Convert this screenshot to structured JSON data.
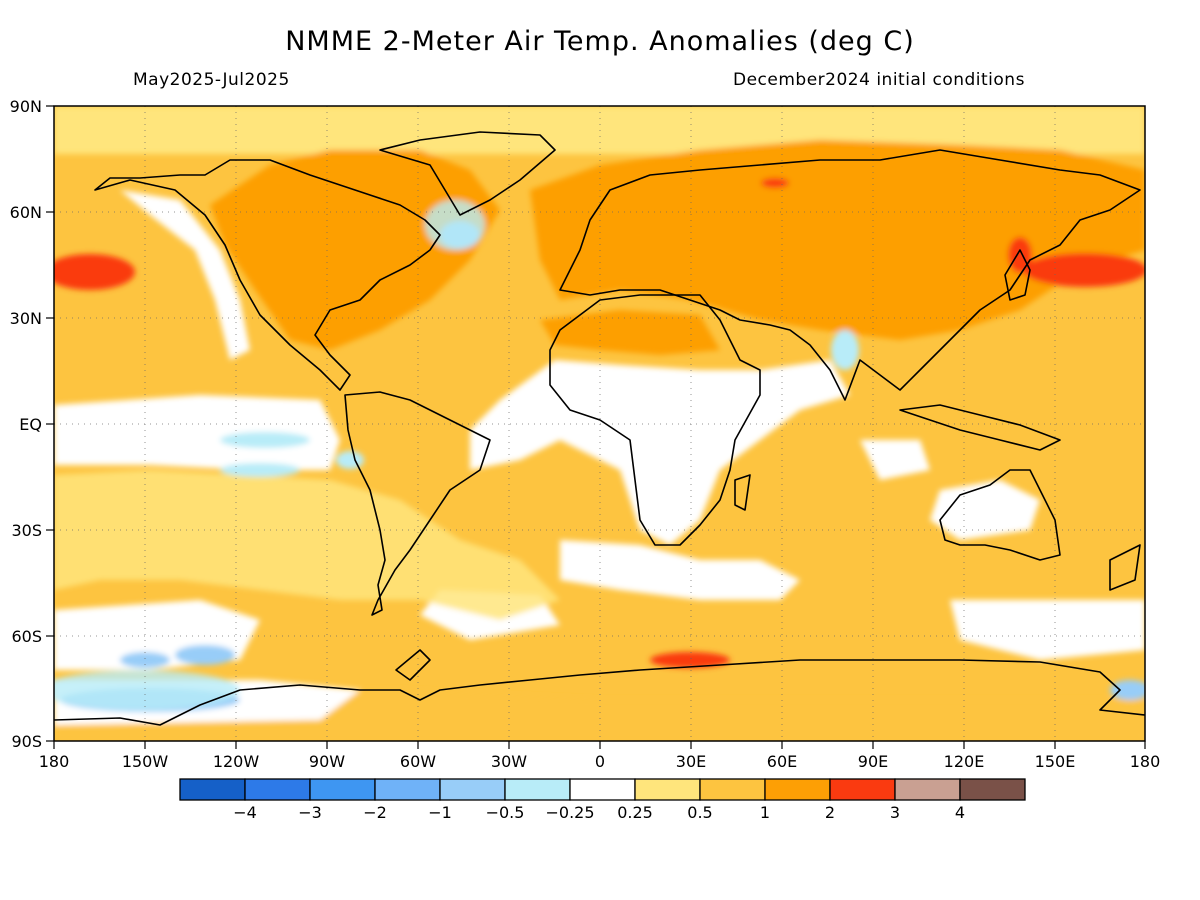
{
  "title": "NMME 2-Meter Air Temp. Anomalies (deg C)",
  "season": "May2025-Jul2025",
  "init": "December2024 initial conditions",
  "lat_ticks": [
    "90N",
    "60N",
    "30N",
    "EQ",
    "30S",
    "60S",
    "90S"
  ],
  "lon_ticks": [
    "180",
    "150W",
    "120W",
    "90W",
    "60W",
    "30W",
    "0",
    "30E",
    "60E",
    "90E",
    "120E",
    "150E",
    "180"
  ],
  "colorbar": {
    "colors": [
      "#1560c8",
      "#2d7ae8",
      "#3e96f2",
      "#6fb2f8",
      "#98cdf8",
      "#b8ecf8",
      "#ffffff",
      "#ffe57c",
      "#fdc440",
      "#fd9f05",
      "#fa3a10",
      "#c9a092",
      "#7a5148"
    ],
    "labels": [
      "-4",
      "-3",
      "-2",
      "-1",
      "-0.5",
      "-0.25",
      "0.25",
      "0.5",
      "1",
      "2",
      "3",
      "4"
    ]
  },
  "palette": {
    "light_yellow": "#ffe57c",
    "light_orange": "#fdc440",
    "orange": "#fd9f05",
    "red": "#fa3a10",
    "light_blue": "#b8ecf8",
    "blue": "#98cdf8",
    "mid_blue": "#6fb2f8"
  }
}
